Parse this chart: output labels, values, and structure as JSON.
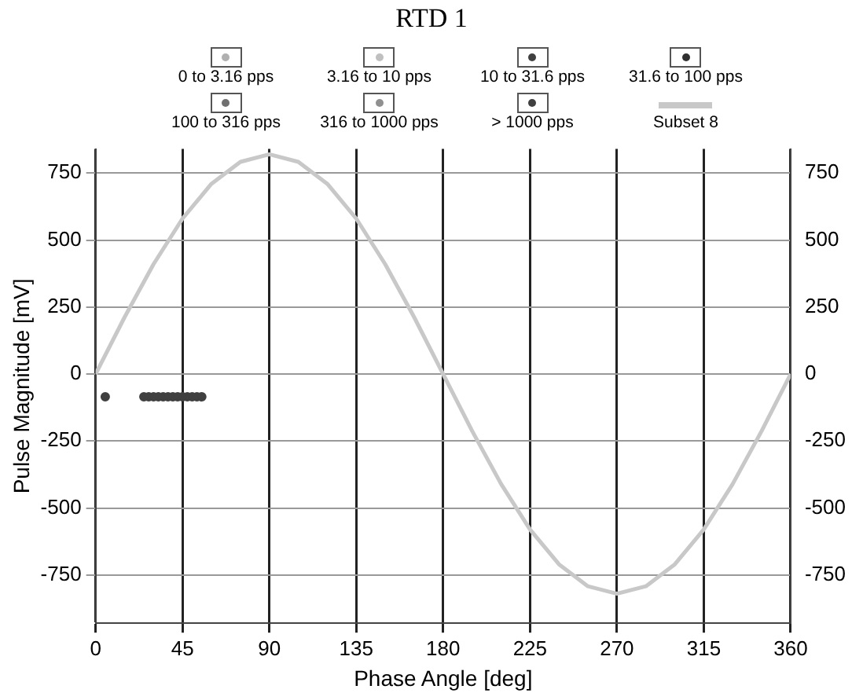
{
  "chart_data": {
    "type": "scatter",
    "title": "RTD 1",
    "xlabel": "Phase Angle [deg]",
    "ylabel": "Pulse Magnitude [mV]",
    "xlim": [
      0,
      360
    ],
    "xticks": [
      0,
      45,
      90,
      135,
      180,
      225,
      270,
      315,
      360
    ],
    "ylim": [
      -930,
      840
    ],
    "yticks": [
      -750,
      -500,
      -250,
      0,
      250,
      500,
      750
    ],
    "y2lim": [
      -930,
      840
    ],
    "y2ticks": [
      -750,
      -500,
      -250,
      0,
      250,
      500,
      750
    ],
    "grid": true,
    "legend": "top",
    "marker": "circle",
    "series": [
      {
        "name": "0 to 3.16 pps",
        "color": "#b0b0b0"
      },
      {
        "name": "3.16 to 10 pps",
        "color": "#c0c0c0"
      },
      {
        "name": "10 to 31.6 pps",
        "color": "#404040",
        "x": [
          5,
          25,
          27.5,
          30,
          32.5,
          35,
          37.5,
          40,
          42.5,
          45,
          47.5,
          50,
          52.5,
          55
        ],
        "values": [
          -85,
          -85,
          -85,
          -85,
          -85,
          -85,
          -85,
          -85,
          -85,
          -85,
          -85,
          -85,
          -85,
          -85
        ]
      },
      {
        "name": "31.6 to 100 pps",
        "color": "#303030"
      },
      {
        "name": "100 to 316 pps",
        "color": "#707070"
      },
      {
        "name": "316 to 1000 pps",
        "color": "#909090"
      },
      {
        "name": "> 1000 pps",
        "color": "#404040"
      },
      {
        "name": "Subset 8",
        "type": "line",
        "marker": "none",
        "color": "#c8c8c8",
        "x": [
          0,
          15,
          30,
          45,
          60,
          75,
          90,
          105,
          120,
          135,
          150,
          165,
          180,
          195,
          210,
          225,
          240,
          255,
          270,
          285,
          300,
          315,
          330,
          345,
          360
        ],
        "values": [
          0,
          212,
          410,
          580,
          710,
          792,
          820,
          792,
          710,
          580,
          410,
          212,
          0,
          -212,
          -410,
          -580,
          -710,
          -792,
          -820,
          -792,
          -710,
          -580,
          -410,
          -212,
          0
        ]
      }
    ]
  }
}
